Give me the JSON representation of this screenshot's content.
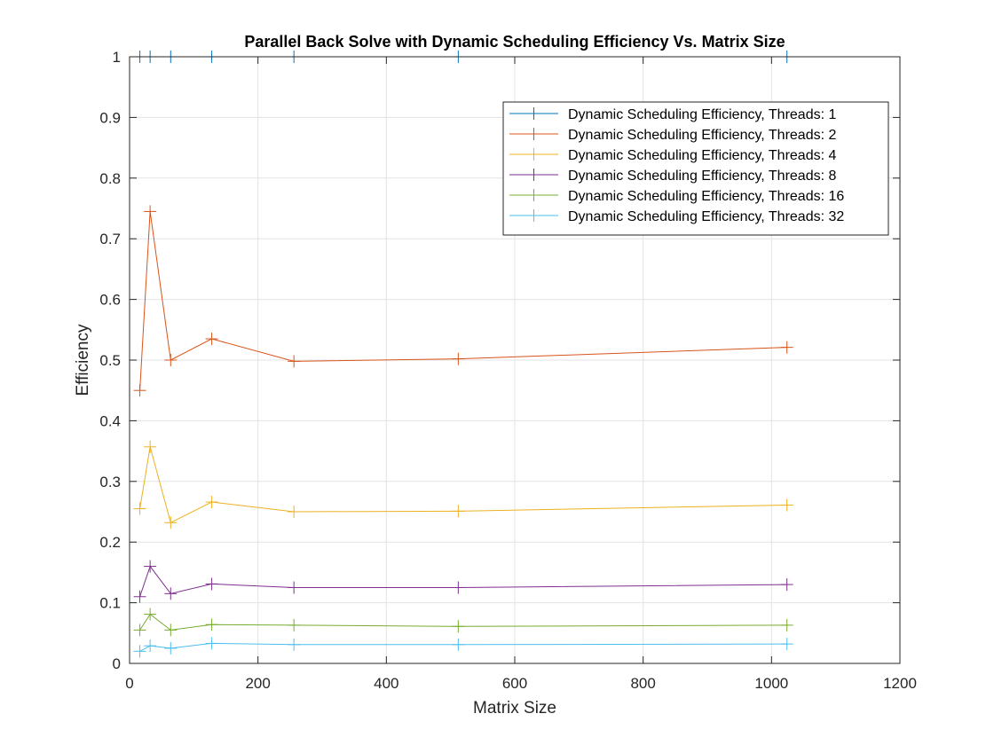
{
  "chart_data": {
    "type": "line",
    "title": "Parallel Back Solve with Dynamic Scheduling Efficiency Vs. Matrix Size",
    "xlabel": "Matrix Size",
    "ylabel": "Efficiency",
    "xlim": [
      0,
      1200
    ],
    "ylim": [
      0,
      1
    ],
    "xticks": [
      0,
      200,
      400,
      600,
      800,
      1000,
      1200
    ],
    "yticks": [
      0,
      0.1,
      0.2,
      0.3,
      0.4,
      0.5,
      0.6,
      0.7,
      0.8,
      0.9,
      1
    ],
    "xtick_labels": [
      "0",
      "200",
      "400",
      "600",
      "800",
      "1000",
      "1200"
    ],
    "ytick_labels": [
      "0",
      "0.1",
      "0.2",
      "0.3",
      "0.4",
      "0.5",
      "0.6",
      "0.7",
      "0.8",
      "0.9",
      "1"
    ],
    "grid": true,
    "legend_position": "top-right",
    "marker": "+",
    "x": [
      16,
      32,
      64,
      128,
      256,
      512,
      1024
    ],
    "series": [
      {
        "name": "Dynamic Scheduling Efficiency, Threads: 1",
        "color": "#0072BD",
        "values": [
          1,
          1,
          1,
          1,
          1,
          1,
          1
        ]
      },
      {
        "name": "Dynamic Scheduling Efficiency, Threads: 2",
        "color": "#D95319",
        "values": [
          0.45,
          0.745,
          0.5,
          0.535,
          0.498,
          0.502,
          0.521
        ]
      },
      {
        "name": "Dynamic Scheduling Efficiency, Threads: 4",
        "color": "#EDB120",
        "values": [
          0.255,
          0.357,
          0.232,
          0.266,
          0.25,
          0.251,
          0.261
        ]
      },
      {
        "name": "Dynamic Scheduling Efficiency, Threads: 8",
        "color": "#7E2F8E",
        "values": [
          0.11,
          0.16,
          0.115,
          0.131,
          0.125,
          0.125,
          0.13
        ]
      },
      {
        "name": "Dynamic Scheduling Efficiency, Threads: 16",
        "color": "#77AC30",
        "values": [
          0.055,
          0.081,
          0.055,
          0.064,
          0.063,
          0.061,
          0.063
        ]
      },
      {
        "name": "Dynamic Scheduling Efficiency, Threads: 32",
        "color": "#4DBEEE",
        "values": [
          0.02,
          0.029,
          0.025,
          0.033,
          0.031,
          0.031,
          0.032
        ]
      }
    ]
  }
}
